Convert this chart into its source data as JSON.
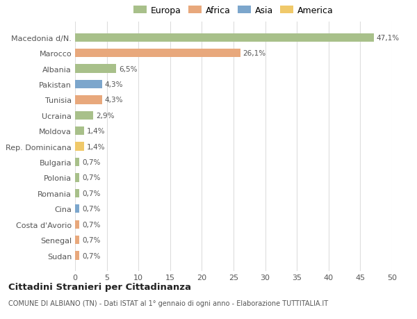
{
  "categories": [
    "Sudan",
    "Senegal",
    "Costa d'Avorio",
    "Cina",
    "Romania",
    "Polonia",
    "Bulgaria",
    "Rep. Dominicana",
    "Moldova",
    "Ucraina",
    "Tunisia",
    "Pakistan",
    "Albania",
    "Marocco",
    "Macedonia d/N."
  ],
  "values": [
    0.7,
    0.7,
    0.7,
    0.7,
    0.7,
    0.7,
    0.7,
    1.4,
    1.4,
    2.9,
    4.3,
    4.3,
    6.5,
    26.1,
    47.1
  ],
  "labels": [
    "0,7%",
    "0,7%",
    "0,7%",
    "0,7%",
    "0,7%",
    "0,7%",
    "0,7%",
    "1,4%",
    "1,4%",
    "2,9%",
    "4,3%",
    "4,3%",
    "6,5%",
    "26,1%",
    "47,1%"
  ],
  "colors": [
    "#e8a87c",
    "#e8a87c",
    "#e8a87c",
    "#7ca6cc",
    "#a8c08a",
    "#a8c08a",
    "#a8c08a",
    "#f0c96a",
    "#a8c08a",
    "#a8c08a",
    "#e8a87c",
    "#7ca6cc",
    "#a8c08a",
    "#e8a87c",
    "#a8c08a"
  ],
  "legend_labels": [
    "Europa",
    "Africa",
    "Asia",
    "America"
  ],
  "legend_colors": [
    "#a8c08a",
    "#e8a87c",
    "#7ca6cc",
    "#f0c96a"
  ],
  "title": "Cittadini Stranieri per Cittadinanza",
  "subtitle": "COMUNE DI ALBIANO (TN) - Dati ISTAT al 1° gennaio di ogni anno - Elaborazione TUTTITALIA.IT",
  "xlim": [
    0,
    50
  ],
  "xticks": [
    0,
    5,
    10,
    15,
    20,
    25,
    30,
    35,
    40,
    45,
    50
  ],
  "bg_color": "#ffffff",
  "grid_color": "#dddddd",
  "bar_height": 0.55
}
